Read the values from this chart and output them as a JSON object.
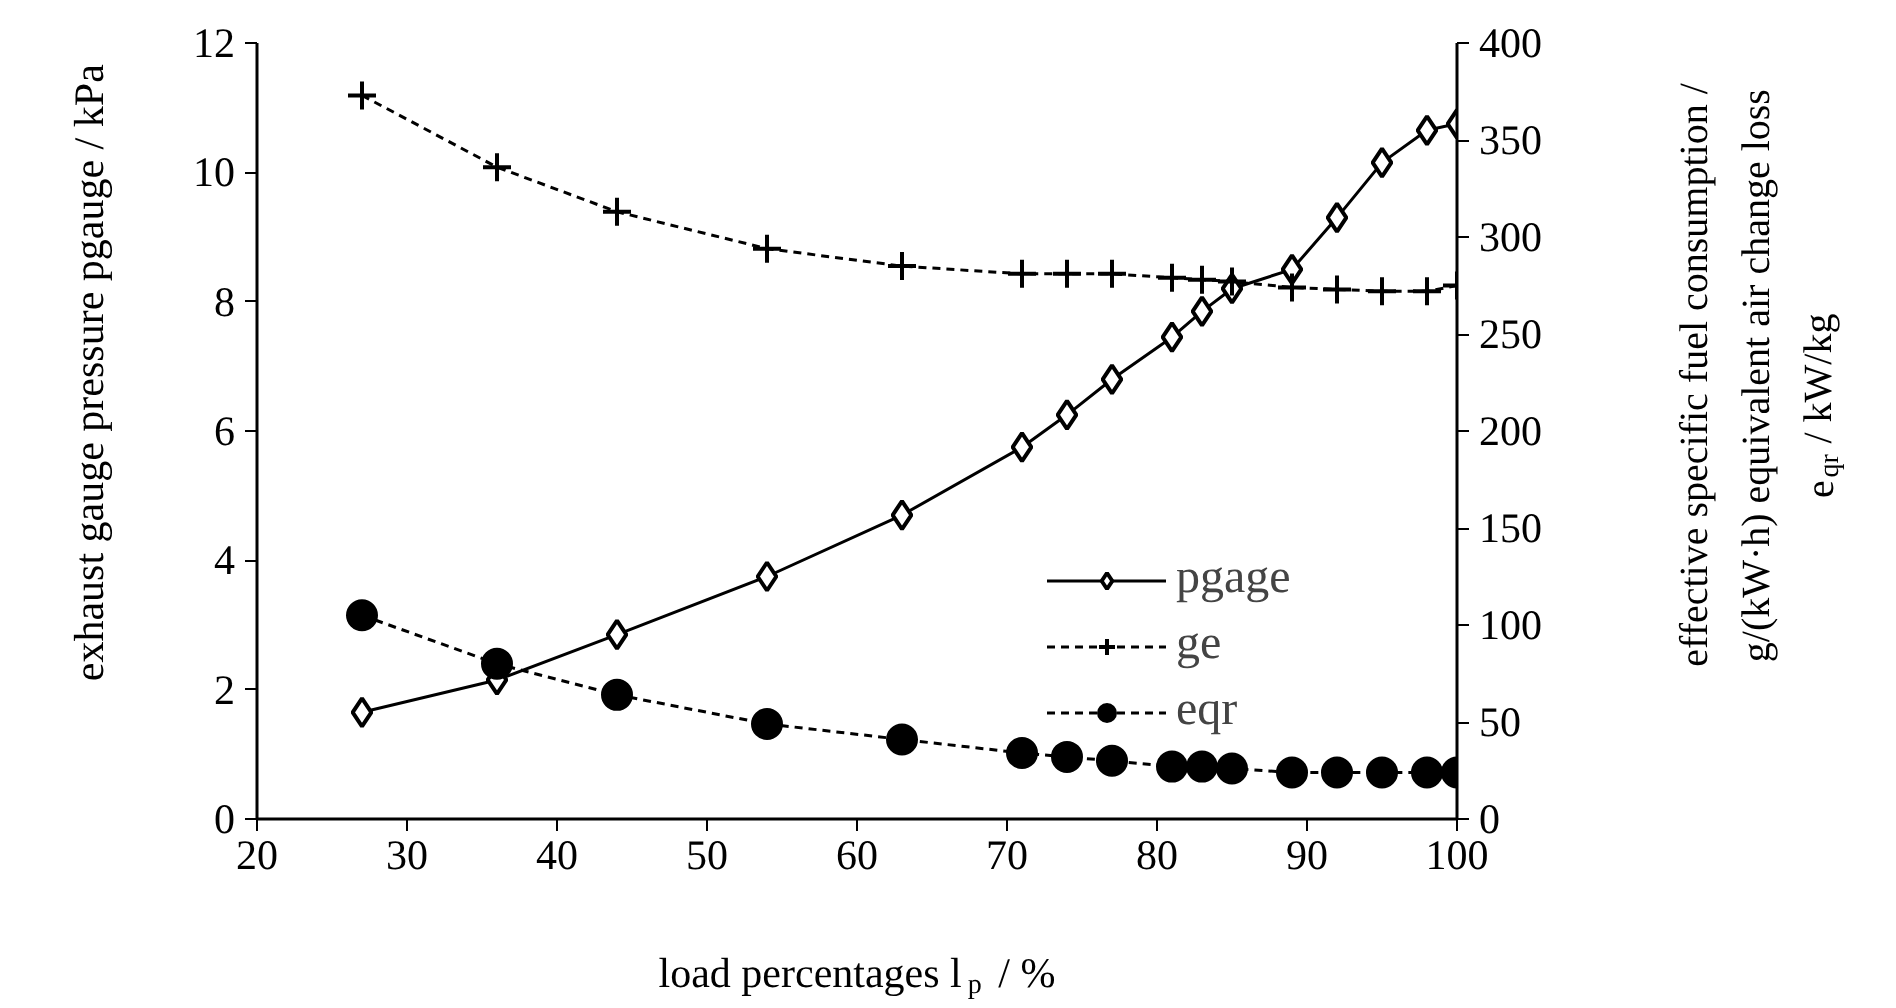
{
  "chart_data": {
    "type": "line",
    "xlabel": "load percentages l$_{p}$ / %",
    "ylabel": "exhaust gauge pressure pgauge / kPa",
    "y2label": "effective specific fuel consumption / g/(kW·h) equivalent air change loss e$_{qr}$ / kW/kg",
    "x": [
      27,
      36,
      44,
      54,
      63,
      71,
      74,
      77,
      81,
      83,
      85,
      89,
      92,
      95,
      98,
      100
    ],
    "xlim": [
      20,
      100
    ],
    "xticks": [
      20,
      30,
      40,
      50,
      60,
      70,
      80,
      90,
      100
    ],
    "ylim": [
      0,
      12
    ],
    "yticks": [
      0,
      2,
      4,
      6,
      8,
      10,
      12
    ],
    "y2lim": [
      0,
      400
    ],
    "y2ticks": [
      0,
      50,
      100,
      150,
      200,
      250,
      300,
      350,
      400
    ],
    "series": [
      {
        "name": "pgage",
        "color": "#000000",
        "marker": "diamond",
        "line_style": "solid",
        "values": [
          1.65,
          2.15,
          2.85,
          3.75,
          4.7,
          5.75,
          6.25,
          6.8,
          7.45,
          7.85,
          8.2,
          8.5,
          9.3,
          10.15,
          10.65,
          10.75
        ]
      },
      {
        "name": "ge",
        "color": "#000000",
        "marker": "cross",
        "line_style": "dashed",
        "axis": "y2",
        "values": [
          373,
          336,
          313,
          294,
          285,
          281,
          281,
          281,
          279,
          278,
          277,
          274,
          273,
          272,
          272,
          275
        ]
      },
      {
        "name": "eqr",
        "color": "#000000",
        "marker": "circle",
        "line_style": "dashed",
        "axis": "y2",
        "values": [
          105,
          80,
          64,
          49,
          41,
          34,
          32,
          30,
          27,
          27,
          26,
          24,
          24,
          24,
          24,
          24
        ]
      }
    ],
    "grid": false,
    "legend": "right"
  }
}
